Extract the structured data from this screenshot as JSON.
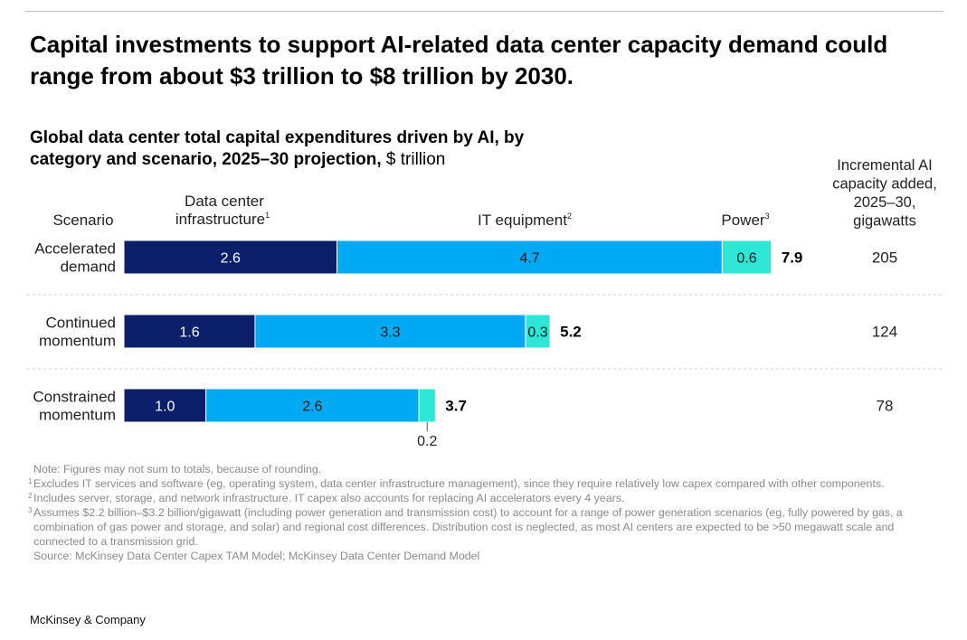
{
  "headline": "Capital investments to support AI-related data center capacity demand could range from about $3 trillion to $8 trillion by 2030.",
  "chart_data": {
    "type": "bar",
    "orientation": "horizontal",
    "stacked": true,
    "title": "Global data center total capital expenditures driven by AI, by category and scenario, 2025–30 projection,",
    "unit": "$ trillion",
    "scenario_header": "Scenario",
    "columns": [
      {
        "label": "Data center infrastructure",
        "sup": "1"
      },
      {
        "label": "IT equipment",
        "sup": "2"
      },
      {
        "label": "Power",
        "sup": "3"
      }
    ],
    "categories": [
      [
        "Accelerated",
        "demand"
      ],
      [
        "Continued",
        "momentum"
      ],
      [
        "Constrained",
        "momentum"
      ]
    ],
    "series": [
      {
        "name": "Data center infrastructure",
        "values": [
          2.6,
          1.6,
          1.0
        ],
        "labels": [
          "2.6",
          "1.6",
          "1.0"
        ],
        "color": "#0b1f6b",
        "text_color": "#ffffff"
      },
      {
        "name": "IT equipment",
        "values": [
          4.7,
          3.3,
          2.6
        ],
        "labels": [
          "4.7",
          "3.3",
          "2.6"
        ],
        "color": "#00a9f4",
        "text_color": "#1a1a1a"
      },
      {
        "name": "Power",
        "values": [
          0.6,
          0.3,
          0.2
        ],
        "labels": [
          "0.6",
          "0.3",
          "0.2"
        ],
        "color": "#2ee6d6",
        "text_color": "#1a1a1a"
      }
    ],
    "totals": [
      "7.9",
      "5.2",
      "3.7"
    ],
    "side_column": {
      "header": [
        "Incremental AI",
        "capacity added,",
        "2025–30,",
        "gigawatts"
      ],
      "values": [
        "205",
        "124",
        "78"
      ]
    }
  },
  "notes": {
    "note": "Note: Figures may not sum to totals, because of rounding.",
    "footnotes": [
      {
        "marker": "1",
        "text": "Excludes IT services and software (eg, operating system, data center infrastructure management), since they require relatively low capex compared with other components."
      },
      {
        "marker": "2",
        "text": "Includes server, storage, and network infrastructure. IT capex also accounts for replacing AI accelerators every 4 years."
      },
      {
        "marker": "3",
        "text": "Assumes $2.2 billion–$3.2 billion/gigawatt (including power generation and transmission cost) to account for a range of power generation scenarios (eg, fully powered by gas, a combination of gas power and storage, and solar) and regional cost differences. Distribution cost is neglected, as most AI centers are expected to be >50 megawatt scale and connected to a transmission grid."
      }
    ],
    "source": "Source: McKinsey Data Center Capex TAM Model; McKinsey Data Center Demand Model"
  },
  "brand": "McKinsey & Company"
}
